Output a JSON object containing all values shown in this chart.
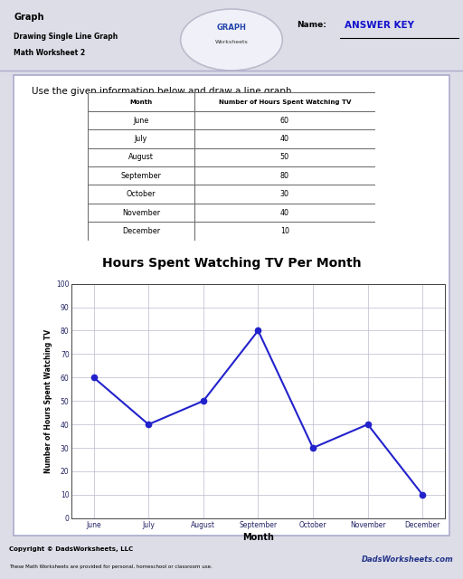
{
  "title_main": "Graph",
  "title_sub1": "Drawing Single Line Graph",
  "title_sub2": "Math Worksheet 2",
  "name_label": "Name:",
  "answer_key": "ANSWER KEY",
  "instruction": "Use the given information below and draw a line graph.",
  "table_headers": [
    "Month",
    "Number of Hours Spent Watching TV"
  ],
  "months": [
    "June",
    "July",
    "August",
    "September",
    "October",
    "November",
    "December"
  ],
  "hours": [
    60,
    40,
    50,
    80,
    30,
    40,
    10
  ],
  "graph_title": "Hours Spent Watching TV Per Month",
  "xlabel": "Month",
  "ylabel": "Number of Hours Spent Watching TV",
  "ylim": [
    0,
    100
  ],
  "yticks": [
    0,
    10,
    20,
    30,
    40,
    50,
    60,
    70,
    80,
    90,
    100
  ],
  "line_color": "#2222cc",
  "marker_color": "#2222cc",
  "bg_color": "#ffffff",
  "page_bg": "#dddde8",
  "table_border_color": "#666666",
  "grid_color": "#bbbbcc",
  "copyright_text": "Copyright © DadsWorksheets, LLC",
  "copyright_sub": "These Math Worksheets are provided for personal, homeschool or classroom use.",
  "footer_bg": "#ccccda",
  "content_border": "#aaaacc",
  "header_line_color": "#aaaacc"
}
